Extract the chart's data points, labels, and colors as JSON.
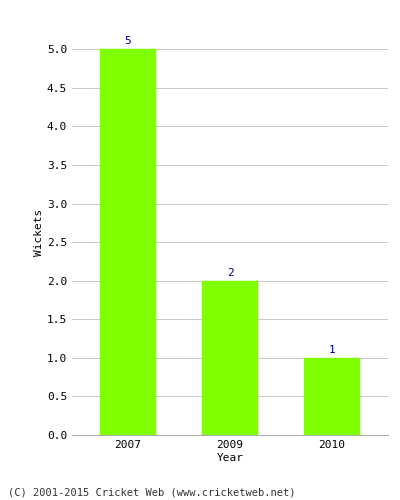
{
  "categories": [
    "2007",
    "2009",
    "2010"
  ],
  "values": [
    5,
    2,
    1
  ],
  "bar_color": "#7fff00",
  "bar_edge_color": "#7fff00",
  "xlabel": "Year",
  "ylabel": "Wickets",
  "ylim": [
    0,
    5.25
  ],
  "yticks": [
    0.0,
    0.5,
    1.0,
    1.5,
    2.0,
    2.5,
    3.0,
    3.5,
    4.0,
    4.5,
    5.0
  ],
  "label_color": "#00008b",
  "label_fontsize": 8,
  "axis_label_fontsize": 8,
  "tick_fontsize": 8,
  "footer_text": "(C) 2001-2015 Cricket Web (www.cricketweb.net)",
  "footer_fontsize": 7.5,
  "background_color": "#ffffff",
  "grid_color": "#c8c8c8",
  "bar_width": 0.55
}
